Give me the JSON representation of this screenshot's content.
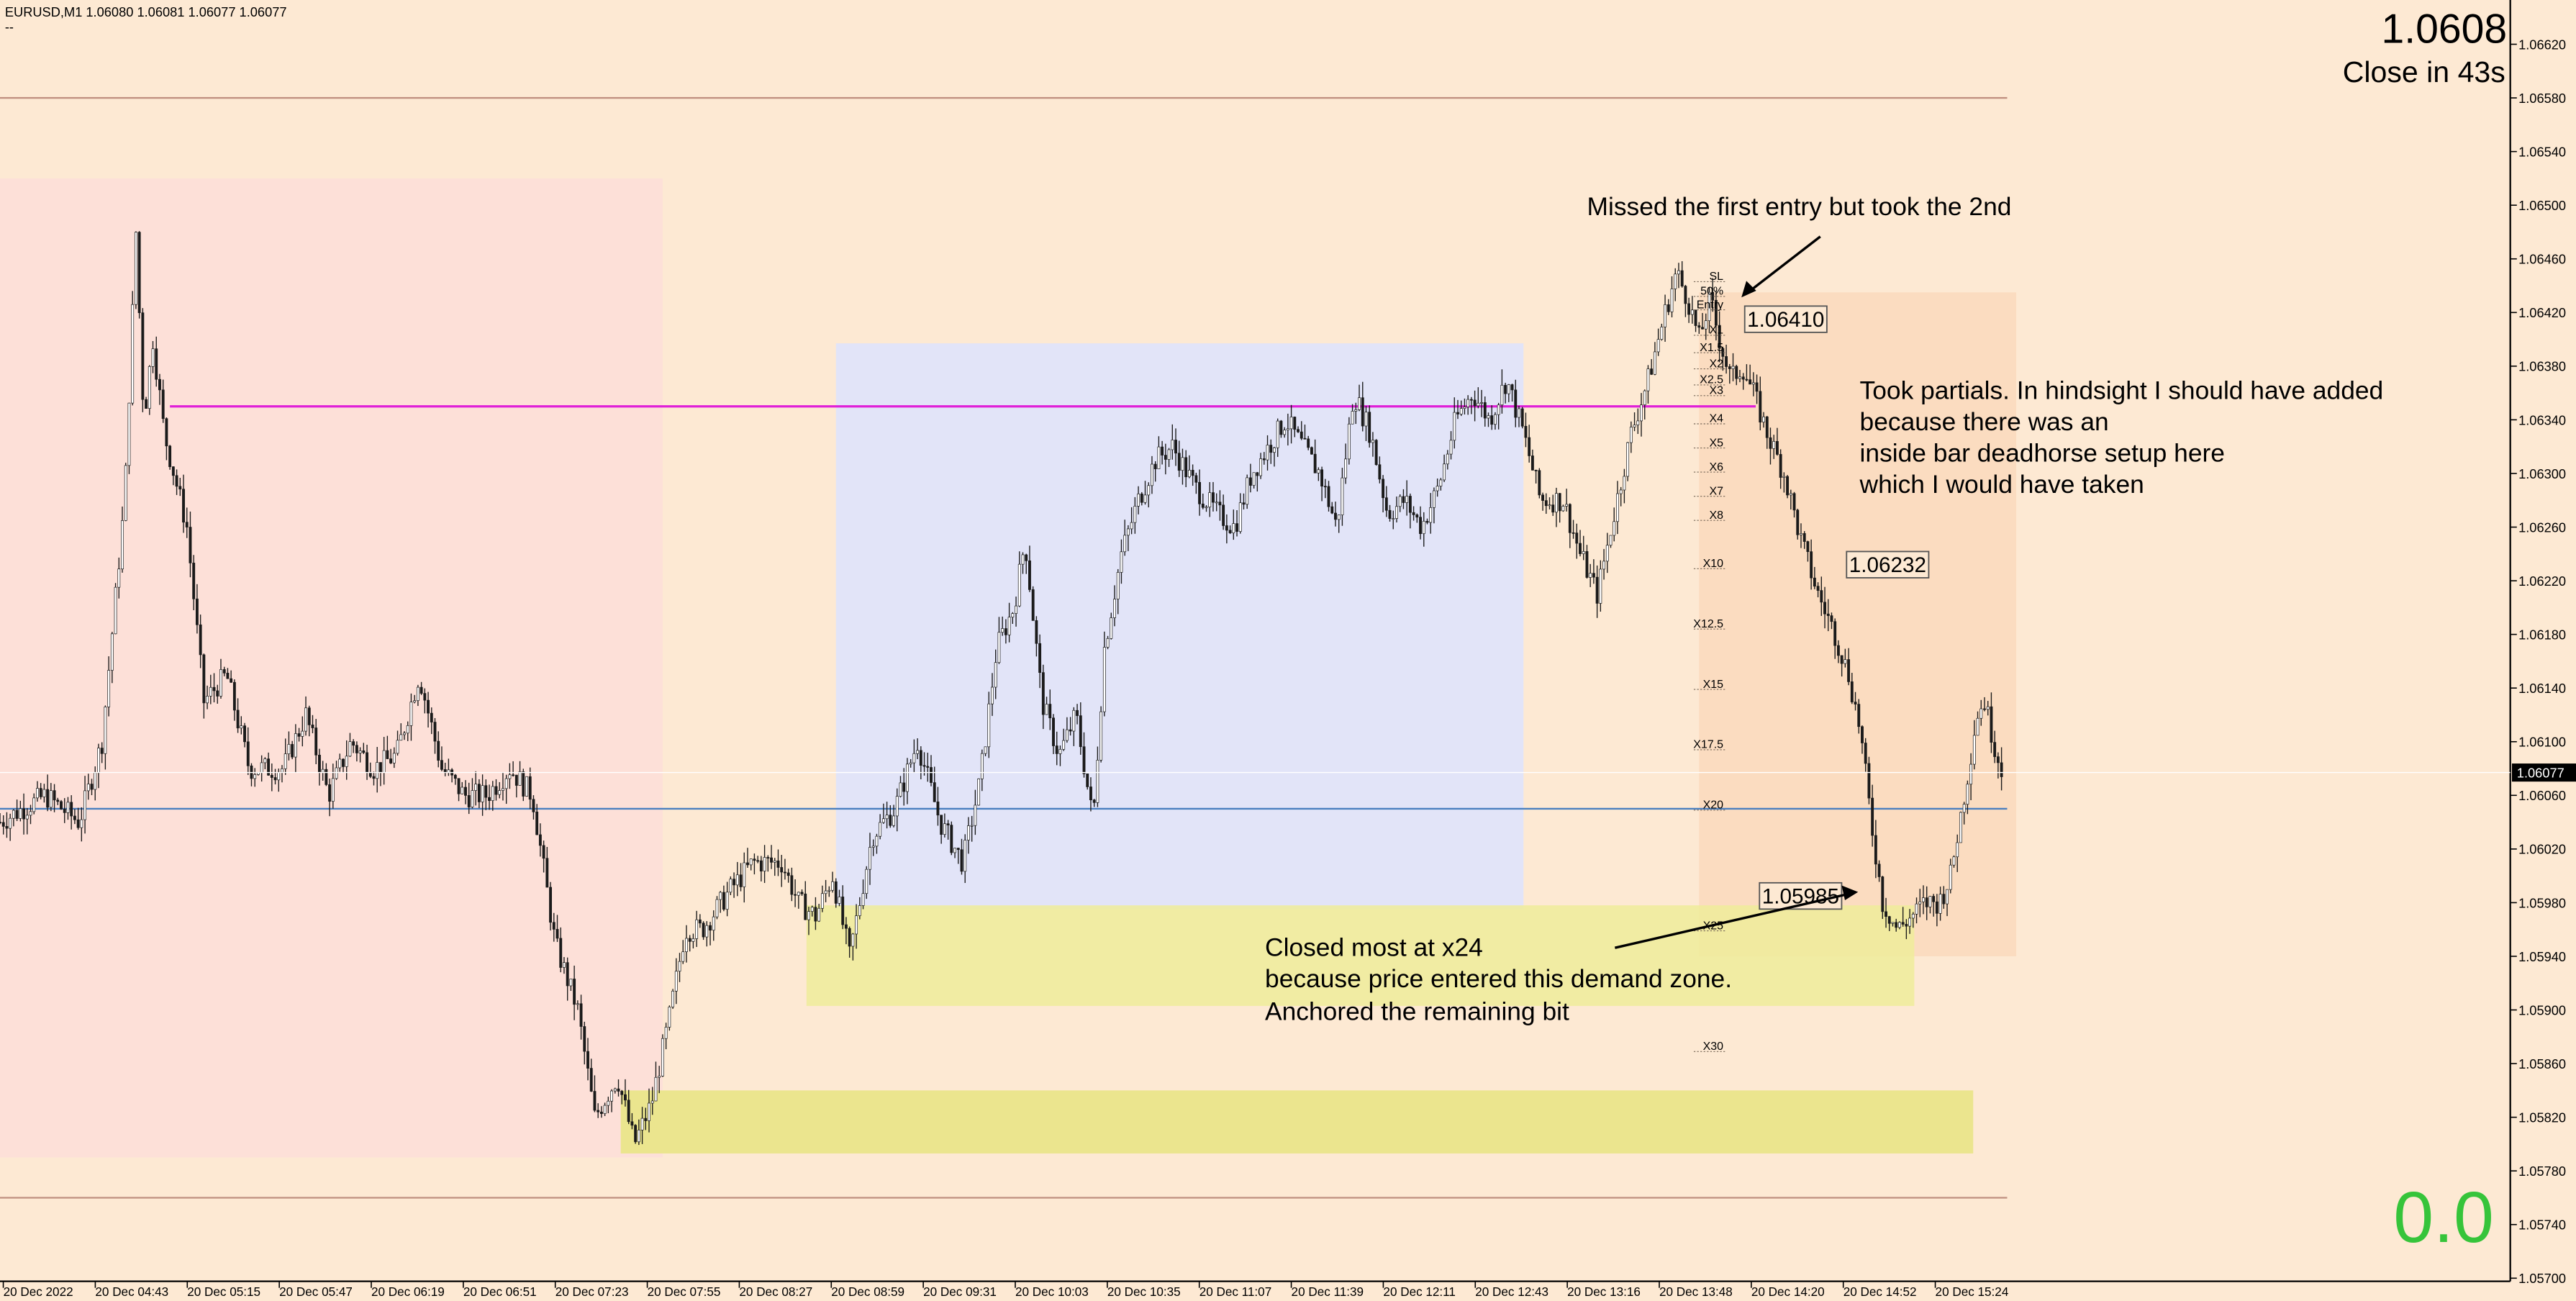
{
  "header": {
    "symbol_line": "EURUSD,M1  1.06080 1.06081 1.06077 1.06077",
    "sub_line": "--"
  },
  "price_panel": {
    "last_price": "1.0608",
    "close_in": "Close in 43s",
    "pnl": "0.0"
  },
  "colors": {
    "background": "#fde9d3",
    "red_zone": "#fde0d8",
    "blue_zone": "#e2e4f8",
    "demand_zone": "#eeec9a",
    "demand_zone_lower": "#ebe58e",
    "trade_zone": "#fbdcc0",
    "candles": "#1a1a1a",
    "magenta_level": "#e020d8",
    "blue_level": "#4a7fbf",
    "brown_level": "#c09080",
    "pnl_green": "#36c43a",
    "current_price_tag": "#000000"
  },
  "chart_data": {
    "type": "candlestick",
    "symbol": "EURUSD",
    "timeframe": "M1",
    "y_ticks": [
      "1.06620",
      "1.06580",
      "1.06540",
      "1.06500",
      "1.06460",
      "1.06420",
      "1.06380",
      "1.06340",
      "1.06300",
      "1.06260",
      "1.06220",
      "1.06180",
      "1.06140",
      "1.06100",
      "1.06060",
      "1.06020",
      "1.05980",
      "1.05940",
      "1.05900",
      "1.05860",
      "1.05820",
      "1.05780",
      "1.05740",
      "1.05700"
    ],
    "ylim": [
      1.05683,
      1.06653
    ],
    "current_price": "1.06077",
    "x_ticks": [
      "20 Dec 2022",
      "20 Dec 04:43",
      "20 Dec 05:15",
      "20 Dec 05:47",
      "20 Dec 06:19",
      "20 Dec 06:51",
      "20 Dec 07:23",
      "20 Dec 07:55",
      "20 Dec 08:27",
      "20 Dec 08:59",
      "20 Dec 09:31",
      "20 Dec 10:03",
      "20 Dec 10:35",
      "20 Dec 11:07",
      "20 Dec 11:39",
      "20 Dec 12:11",
      "20 Dec 12:43",
      "20 Dec 13:16",
      "20 Dec 13:48",
      "20 Dec 14:20",
      "20 Dec 14:52",
      "20 Dec 15:24"
    ],
    "price_path": [
      [
        0,
        1.0604
      ],
      [
        40,
        1.0606
      ],
      [
        70,
        1.0604
      ],
      [
        90,
        1.061
      ],
      [
        110,
        1.0628
      ],
      [
        120,
        1.0648
      ],
      [
        127,
        1.0634
      ],
      [
        135,
        1.064
      ],
      [
        145,
        1.0633
      ],
      [
        165,
        1.0626
      ],
      [
        180,
        1.0613
      ],
      [
        200,
        1.0615
      ],
      [
        220,
        1.0608
      ],
      [
        250,
        1.0608
      ],
      [
        270,
        1.0612
      ],
      [
        290,
        1.0606
      ],
      [
        310,
        1.061
      ],
      [
        330,
        1.0608
      ],
      [
        350,
        1.0609
      ],
      [
        370,
        1.0615
      ],
      [
        390,
        1.0608
      ],
      [
        410,
        1.0606
      ],
      [
        430,
        1.0606
      ],
      [
        450,
        1.0608
      ],
      [
        470,
        1.0606
      ],
      [
        490,
        1.0595
      ],
      [
        510,
        1.059
      ],
      [
        525,
        1.0582
      ],
      [
        545,
        1.0585
      ],
      [
        560,
        1.058
      ],
      [
        575,
        1.0583
      ],
      [
        590,
        1.0589
      ],
      [
        605,
        1.0596
      ],
      [
        620,
        1.0596
      ],
      [
        645,
        1.0599
      ],
      [
        665,
        1.0601
      ],
      [
        690,
        1.0601
      ],
      [
        705,
        1.0598
      ],
      [
        720,
        1.0597
      ],
      [
        735,
        1.06
      ],
      [
        750,
        1.0594
      ],
      [
        770,
        1.0603
      ],
      [
        790,
        1.0605
      ],
      [
        810,
        1.061
      ],
      [
        830,
        1.0604
      ],
      [
        850,
        1.0601
      ],
      [
        865,
        1.0607
      ],
      [
        880,
        1.0617
      ],
      [
        895,
        1.062
      ],
      [
        905,
        1.0625
      ],
      [
        920,
        1.0613
      ],
      [
        935,
        1.0609
      ],
      [
        950,
        1.0612
      ],
      [
        965,
        1.0604
      ],
      [
        975,
        1.0617
      ],
      [
        990,
        1.0624
      ],
      [
        1005,
        1.0628
      ],
      [
        1020,
        1.0631
      ],
      [
        1035,
        1.0632
      ],
      [
        1055,
        1.0629
      ],
      [
        1075,
        1.0627
      ],
      [
        1090,
        1.0626
      ],
      [
        1105,
        1.063
      ],
      [
        1120,
        1.0632
      ],
      [
        1135,
        1.0634
      ],
      [
        1150,
        1.0632
      ],
      [
        1165,
        1.063
      ],
      [
        1180,
        1.0626
      ],
      [
        1195,
        1.0636
      ],
      [
        1210,
        1.0633
      ],
      [
        1225,
        1.0627
      ],
      [
        1240,
        1.0628
      ],
      [
        1255,
        1.0626
      ],
      [
        1270,
        1.0629
      ],
      [
        1285,
        1.0634
      ],
      [
        1300,
        1.0636
      ],
      [
        1315,
        1.0634
      ],
      [
        1330,
        1.0637
      ],
      [
        1345,
        1.0633
      ],
      [
        1360,
        1.0628
      ],
      [
        1380,
        1.0628
      ],
      [
        1395,
        1.0624
      ],
      [
        1410,
        1.0621
      ],
      [
        1425,
        1.0627
      ],
      [
        1440,
        1.0633
      ],
      [
        1455,
        1.0637
      ],
      [
        1470,
        1.0642
      ],
      [
        1480,
        1.0645
      ],
      [
        1490,
        1.0643
      ],
      [
        1500,
        1.064
      ],
      [
        1510,
        1.0643
      ],
      [
        1518,
        1.064
      ],
      [
        1528,
        1.0637
      ],
      [
        1538,
        1.0638
      ],
      [
        1548,
        1.0636
      ],
      [
        1560,
        1.0633
      ],
      [
        1575,
        1.063
      ],
      [
        1590,
        1.0625
      ],
      [
        1605,
        1.0621
      ],
      [
        1620,
        1.0618
      ],
      [
        1632,
        1.0615
      ],
      [
        1642,
        1.0611
      ],
      [
        1652,
        1.0604
      ],
      [
        1662,
        1.0598
      ],
      [
        1675,
        1.0596
      ],
      [
        1688,
        1.0597
      ],
      [
        1700,
        1.0598
      ],
      [
        1712,
        1.0598
      ],
      [
        1722,
        1.06
      ],
      [
        1730,
        1.0604
      ],
      [
        1738,
        1.0608
      ],
      [
        1745,
        1.0612
      ],
      [
        1752,
        1.0613
      ],
      [
        1760,
        1.061
      ],
      [
        1767,
        1.0608
      ]
    ]
  },
  "zones": [
    {
      "name": "red-zone",
      "x1": 0,
      "x2": 585,
      "top": 1.0652,
      "bottom": 1.0579
    },
    {
      "name": "blue-zone",
      "x1": 738,
      "x2": 1345,
      "top": 1.06397,
      "bottom": 1.05975
    },
    {
      "name": "demand-zone-upper",
      "x1": 712,
      "x2": 1690,
      "top": 1.05978,
      "bottom": 1.05903
    },
    {
      "name": "demand-zone-lower",
      "x1": 548,
      "x2": 1742,
      "top": 1.0584,
      "bottom": 1.05793
    },
    {
      "name": "trade-zone",
      "x1": 1500,
      "x2": 1780,
      "top": 1.06435,
      "bottom": 1.0594
    }
  ],
  "levels": [
    {
      "name": "magenta-level",
      "x1": 150,
      "x2": 1550,
      "price": 1.0635
    },
    {
      "name": "blue-level",
      "x1": 0,
      "x2": 1772,
      "price": 1.0605
    },
    {
      "name": "top-brown-level",
      "x1": 0,
      "x2": 1772,
      "price": 1.0658
    },
    {
      "name": "bottom-brown-level",
      "x1": 0,
      "x2": 1772,
      "price": 1.0576
    }
  ],
  "fib_labels": [
    {
      "text": "SL",
      "price": 1.06443
    },
    {
      "text": "50%",
      "price": 1.06432
    },
    {
      "text": "Entry",
      "price": 1.06422
    },
    {
      "text": "X1",
      "price": 1.06403
    },
    {
      "text": "X1.5",
      "price": 1.0639
    },
    {
      "text": "X2",
      "price": 1.06378
    },
    {
      "text": "X2.5",
      "price": 1.06366
    },
    {
      "text": "X3",
      "price": 1.06358
    },
    {
      "text": "X4",
      "price": 1.06337
    },
    {
      "text": "X5",
      "price": 1.06319
    },
    {
      "text": "X6",
      "price": 1.06301
    },
    {
      "text": "X7",
      "price": 1.06283
    },
    {
      "text": "X8",
      "price": 1.06265
    },
    {
      "text": "X10",
      "price": 1.06229
    },
    {
      "text": "X12.5",
      "price": 1.06184
    },
    {
      "text": "X15",
      "price": 1.06139
    },
    {
      "text": "X17.5",
      "price": 1.06094
    },
    {
      "text": "X20",
      "price": 1.06049
    },
    {
      "text": "X25",
      "price": 1.05959
    },
    {
      "text": "X30",
      "price": 1.05869
    }
  ],
  "price_boxes": [
    {
      "name": "price-box-entry",
      "text": "1.06410",
      "price": 1.06415
    },
    {
      "name": "price-box-partial",
      "text": "1.06232",
      "price": 1.06232
    },
    {
      "name": "price-box-exit",
      "text": "1.05985",
      "price": 1.05985
    }
  ],
  "annotations": {
    "missed_entry": [
      "Missed the first entry but took the 2nd"
    ],
    "partials": [
      "Took partials. In hindsight I should have added",
      "because there was an",
      "inside bar deadhorse setup here",
      "which I would have taken"
    ],
    "closed_most": [
      "Closed most at x24",
      "because price entered this demand zone.",
      "Anchored the remaining bit"
    ]
  }
}
